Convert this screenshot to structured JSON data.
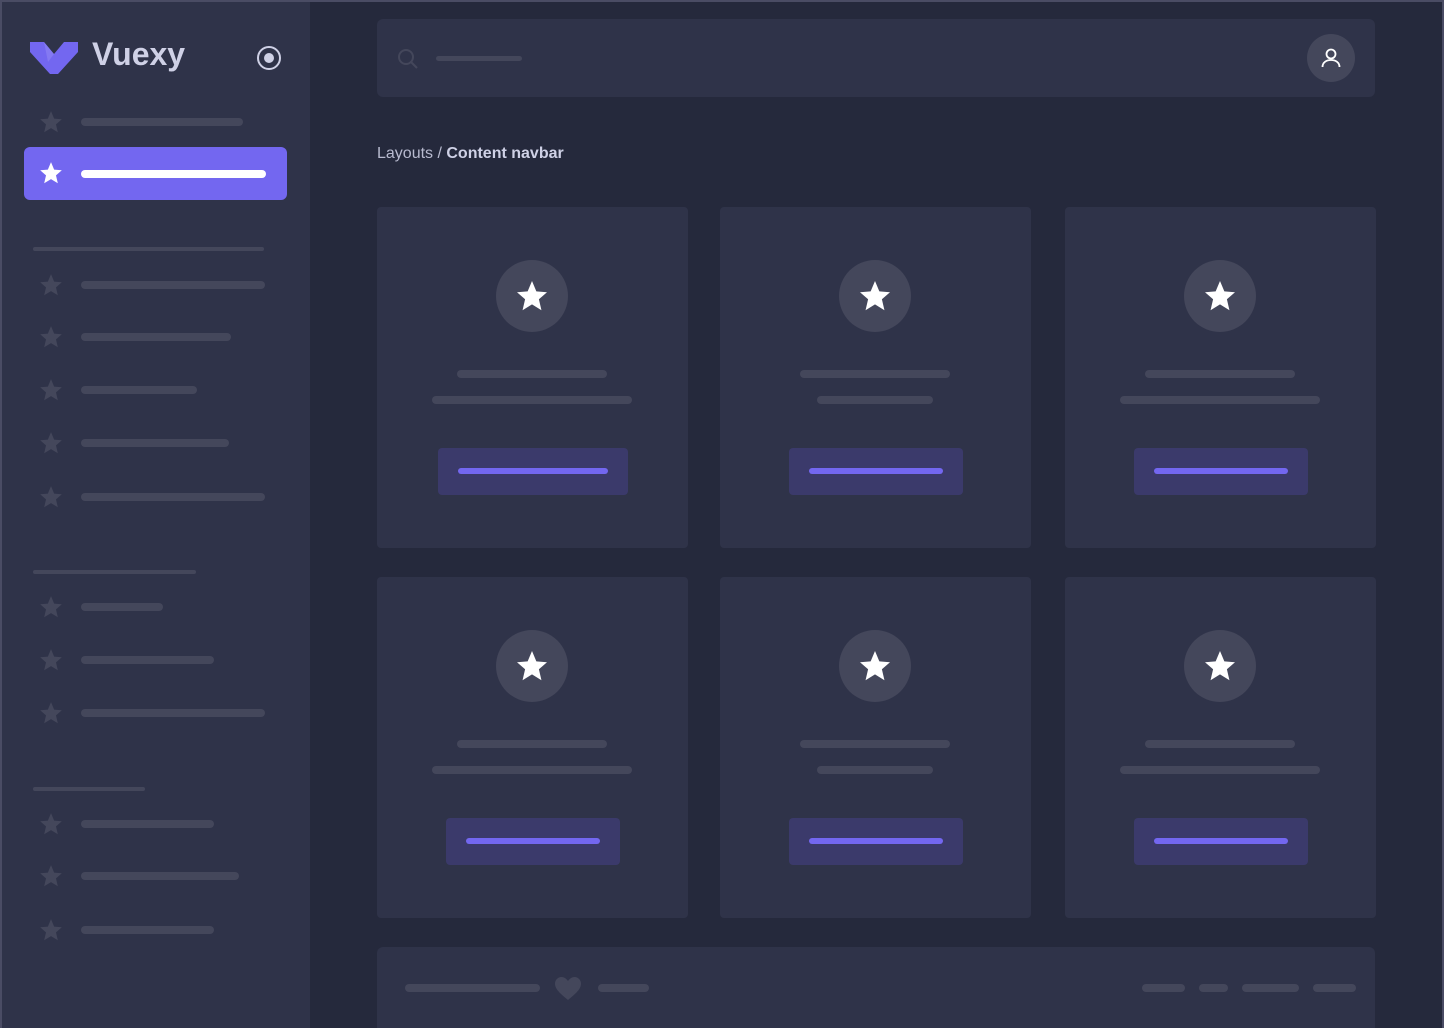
{
  "app": {
    "name": "Vuexy"
  },
  "breadcrumb": {
    "parent": "Layouts / ",
    "current": "Content navbar"
  },
  "colors": {
    "accent": "#7367f0",
    "sidebar_bg": "#2f3349",
    "page_bg": "#25293c",
    "placeholder": "#44475b"
  },
  "icons": {
    "logo": "vuexy-logo",
    "collapse": "radio-circle-icon",
    "nav": "star-icon",
    "search": "search-icon",
    "user": "user-icon",
    "footer": "heart-icon"
  }
}
